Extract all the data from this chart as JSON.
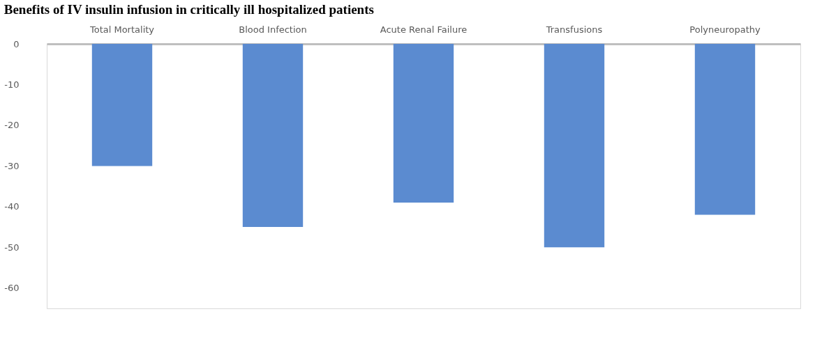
{
  "chart_data": {
    "type": "bar",
    "title": "Benefits of IV insulin infusion in critically ill hospitalized patients",
    "categories": [
      "Total Mortality",
      "Blood Infection",
      "Acute Renal Failure",
      "Transfusions",
      "Polyneuropathy"
    ],
    "values": [
      -30,
      -45,
      -39,
      -50,
      -42
    ],
    "color": "#5b8bd0",
    "ylim": [
      -65,
      0
    ],
    "yticks": [
      0,
      -10,
      -20,
      -30,
      -40,
      -50,
      -60
    ],
    "grid": false
  }
}
